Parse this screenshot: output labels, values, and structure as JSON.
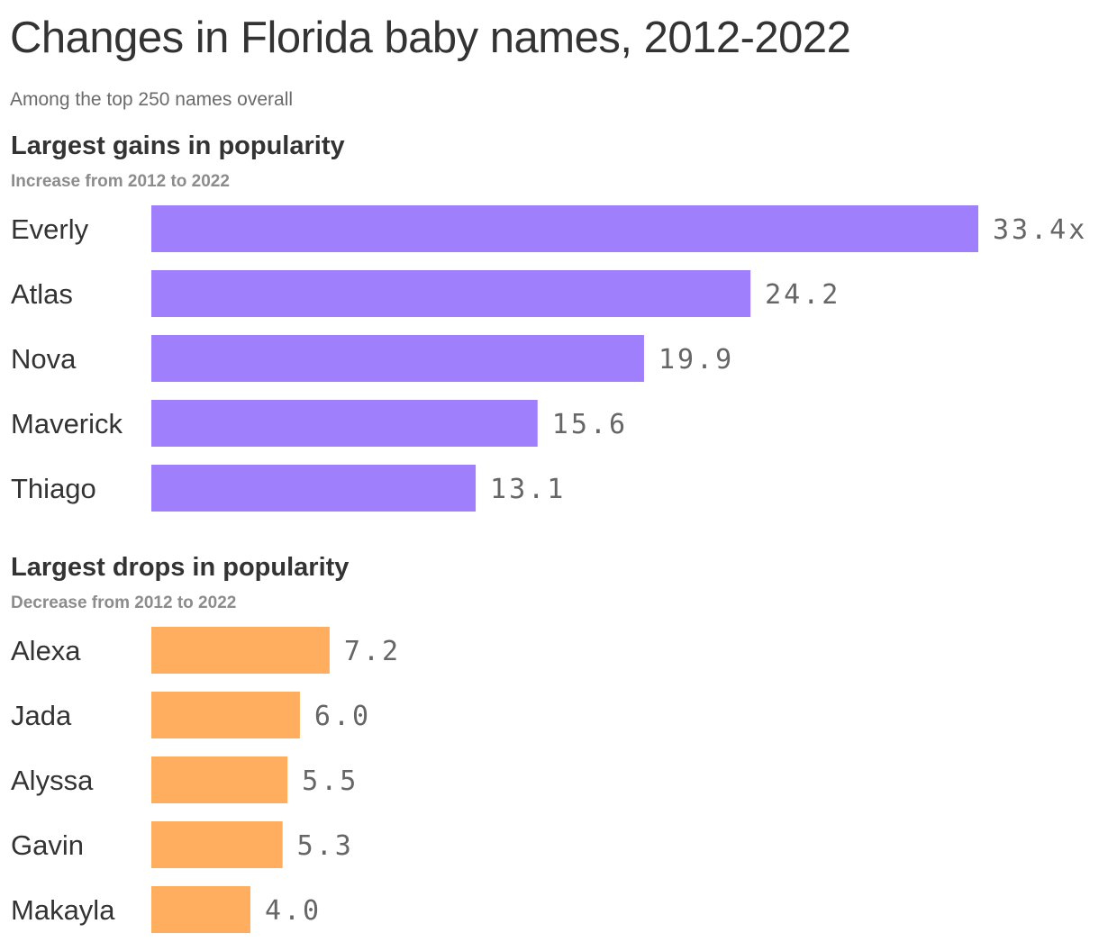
{
  "title": "Changes in Florida baby names, 2012-2022",
  "subtitle": "Among the top 250 names overall",
  "chart_data": [
    {
      "type": "bar",
      "orientation": "horizontal",
      "title": "Largest gains in popularity",
      "subtitle": "Increase from 2012 to 2022",
      "categories": [
        "Everly",
        "Atlas",
        "Nova",
        "Maverick",
        "Thiago"
      ],
      "values": [
        33.4,
        24.2,
        19.9,
        15.6,
        13.1
      ],
      "value_labels": [
        "33.4x",
        "24.2",
        "19.9",
        "15.6",
        "13.1"
      ],
      "color": "#a07ffc",
      "xlim": [
        0,
        33.4
      ]
    },
    {
      "type": "bar",
      "orientation": "horizontal",
      "title": "Largest drops in popularity",
      "subtitle": "Decrease from 2012 to 2022",
      "categories": [
        "Alexa",
        "Jada",
        "Alyssa",
        "Gavin",
        "Makayla"
      ],
      "values": [
        7.2,
        6.0,
        5.5,
        5.3,
        4.0
      ],
      "value_labels": [
        "7.2",
        "6.0",
        "5.5",
        "5.3",
        "4.0"
      ],
      "color": "#ffad5e",
      "xlim": [
        0,
        33.4
      ]
    }
  ]
}
